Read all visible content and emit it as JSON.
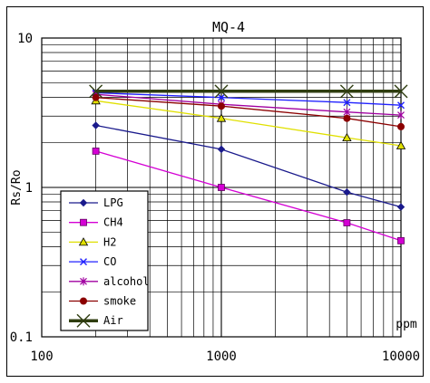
{
  "chart_data": {
    "type": "line",
    "title": "MQ-4",
    "xlabel": "",
    "ylabel": "Rs/Ro",
    "x_unit_label": "ppm",
    "x_scale": "log",
    "y_scale": "log",
    "xlim": [
      100,
      10000
    ],
    "ylim": [
      0.1,
      10
    ],
    "x_ticks": [
      "100",
      "1000",
      "10000"
    ],
    "y_ticks": [
      "0.1",
      "1",
      "10"
    ],
    "grid": true,
    "legend_position": "bottom-left",
    "series": [
      {
        "name": "LPG",
        "color": "#1a1a8c",
        "marker": "diamond",
        "x": [
          200,
          1000,
          5000,
          10000
        ],
        "y": [
          2.6,
          1.8,
          0.93,
          0.74
        ]
      },
      {
        "name": "CH4",
        "color": "#d400d4",
        "marker": "square",
        "x": [
          200,
          1000,
          5000,
          10000
        ],
        "y": [
          1.75,
          1.0,
          0.58,
          0.44
        ]
      },
      {
        "name": "H2",
        "color": "#e0e000",
        "marker": "triangle",
        "x": [
          200,
          1000,
          5000,
          10000
        ],
        "y": [
          3.8,
          2.9,
          2.15,
          1.9
        ]
      },
      {
        "name": "CO",
        "color": "#2020ff",
        "marker": "x",
        "x": [
          200,
          1000,
          5000,
          10000
        ],
        "y": [
          4.3,
          4.0,
          3.7,
          3.55
        ]
      },
      {
        "name": "alcohol",
        "color": "#a000a0",
        "marker": "star",
        "x": [
          200,
          1000,
          5000,
          10000
        ],
        "y": [
          4.2,
          3.6,
          3.2,
          3.05
        ]
      },
      {
        "name": "smoke",
        "color": "#8b0000",
        "marker": "circle",
        "x": [
          200,
          1000,
          5000,
          10000
        ],
        "y": [
          4.0,
          3.5,
          2.9,
          2.55
        ]
      },
      {
        "name": "Air",
        "color": "#2f3d10",
        "marker": "x",
        "x": [
          200,
          1000,
          5000,
          10000
        ],
        "y": [
          4.4,
          4.4,
          4.4,
          4.4
        ]
      }
    ]
  }
}
